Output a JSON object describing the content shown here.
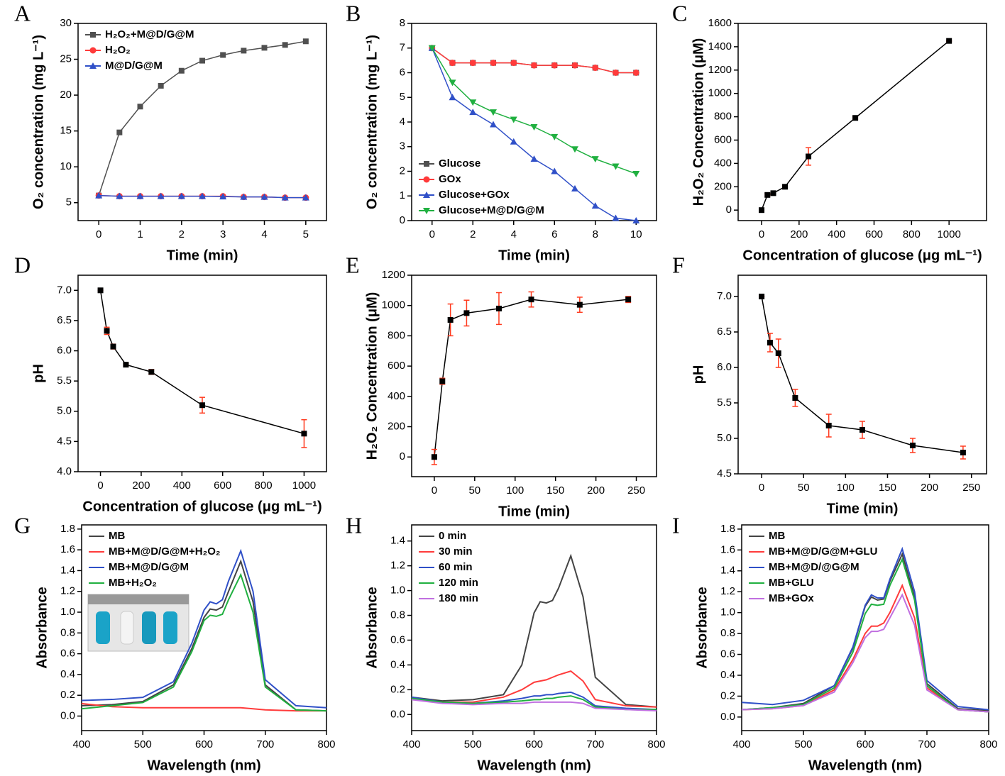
{
  "chart_data": [
    {
      "type": "line",
      "label": "A",
      "xlabel": "Time (min)",
      "ylabel": "O₂ concentration (mg L⁻¹)",
      "xlim": [
        -0.5,
        5.5
      ],
      "ylim": [
        2.5,
        30
      ],
      "xticks": [
        0,
        1,
        2,
        3,
        4,
        5
      ],
      "yticks": [
        5,
        10,
        15,
        20,
        25,
        30
      ],
      "legend": "upper-left",
      "x": [
        0,
        0.5,
        1,
        1.5,
        2,
        2.5,
        3,
        3.5,
        4,
        4.5,
        5
      ],
      "series": [
        {
          "name": "H₂O₂+M@D/G@M",
          "color": "#505050",
          "marker": "square",
          "values": [
            6.0,
            14.8,
            18.4,
            21.3,
            23.4,
            24.8,
            25.6,
            26.2,
            26.6,
            27.0,
            27.5
          ]
        },
        {
          "name": "H₂O₂",
          "color": "#ff3b3b",
          "marker": "circle",
          "values": [
            6.0,
            5.9,
            5.9,
            5.9,
            5.9,
            5.9,
            5.9,
            5.8,
            5.8,
            5.7,
            5.7
          ]
        },
        {
          "name": "M@D/G@M",
          "color": "#3050c8",
          "marker": "triangle",
          "values": [
            6.0,
            5.9,
            5.9,
            5.9,
            5.9,
            5.9,
            5.85,
            5.8,
            5.8,
            5.7,
            5.7
          ]
        }
      ]
    },
    {
      "type": "line",
      "label": "B",
      "xlabel": "Time (min)",
      "ylabel": "O₂ concentration (mg L⁻¹)",
      "xlim": [
        -1,
        11
      ],
      "ylim": [
        0,
        8
      ],
      "xticks": [
        0,
        2,
        4,
        6,
        8,
        10
      ],
      "yticks": [
        0,
        1,
        2,
        3,
        4,
        5,
        6,
        7,
        8
      ],
      "legend": "lower-left",
      "x": [
        0,
        1,
        2,
        3,
        4,
        5,
        6,
        7,
        8,
        9,
        10
      ],
      "series": [
        {
          "name": "Glucose",
          "color": "#505050",
          "marker": "square",
          "values": [
            7.0,
            6.4,
            6.4,
            6.4,
            6.4,
            6.3,
            6.3,
            6.3,
            6.2,
            6.0,
            6.0
          ]
        },
        {
          "name": "GOx",
          "color": "#ff3b3b",
          "marker": "circle",
          "values": [
            7.0,
            6.4,
            6.4,
            6.4,
            6.4,
            6.3,
            6.3,
            6.3,
            6.2,
            6.0,
            6.0
          ]
        },
        {
          "name": "Glucose+GOx",
          "color": "#3050c8",
          "marker": "triangle",
          "values": [
            7.0,
            5.0,
            4.4,
            3.9,
            3.2,
            2.5,
            2.0,
            1.3,
            0.6,
            0.1,
            0.0
          ]
        },
        {
          "name": "Glucose+M@D/G@M",
          "color": "#20b040",
          "marker": "triangle-down",
          "values": [
            7.0,
            5.6,
            4.8,
            4.4,
            4.1,
            3.8,
            3.4,
            2.9,
            2.5,
            2.2,
            1.9
          ]
        }
      ]
    },
    {
      "type": "line",
      "label": "C",
      "xlabel": "Concentration of glucose (μg mL⁻¹)",
      "ylabel": "H₂O₂ Concentration (μM)",
      "xlim": [
        -125,
        1200
      ],
      "ylim": [
        -90,
        1600
      ],
      "xticks": [
        0,
        200,
        400,
        600,
        800,
        1000
      ],
      "yticks": [
        0,
        200,
        400,
        600,
        800,
        1000,
        1200,
        1400,
        1600
      ],
      "x": [
        0,
        31.25,
        62.5,
        125,
        250,
        500,
        1000
      ],
      "series": [
        {
          "color": "#000000",
          "error_color": "#ff3b1f",
          "marker": "square",
          "values": [
            0,
            130,
            145,
            200,
            460,
            790,
            1450
          ],
          "errors": [
            0,
            10,
            10,
            10,
            75,
            10,
            5
          ]
        }
      ]
    },
    {
      "type": "line",
      "label": "D",
      "xlabel": "Concentration of glucose (μg mL⁻¹)",
      "ylabel": "pH",
      "xlim": [
        -110,
        1110
      ],
      "ylim": [
        4,
        7.25
      ],
      "xticks": [
        0,
        200,
        400,
        600,
        800,
        1000
      ],
      "yticks": [
        {
          "value": 4,
          "label": "4.0"
        },
        4.5,
        {
          "value": 5,
          "label": "5.0"
        },
        5.5,
        {
          "value": 6,
          "label": "6.0"
        },
        6.5,
        {
          "value": 7,
          "label": "7.0"
        }
      ],
      "x": [
        0,
        31.25,
        62.5,
        125,
        250,
        500,
        1000
      ],
      "series": [
        {
          "color": "#000000",
          "error_color": "#ff3b1f",
          "marker": "square",
          "values": [
            7.0,
            6.33,
            6.07,
            5.77,
            5.65,
            5.1,
            4.63
          ],
          "errors": [
            0,
            0.06,
            0.04,
            0.02,
            0.04,
            0.13,
            0.23
          ]
        }
      ]
    },
    {
      "type": "line",
      "label": "E",
      "xlabel": "Time (min)",
      "ylabel": "H₂O₂ Concentration (μM)",
      "xlim": [
        -28,
        275
      ],
      "ylim": [
        -130,
        1200
      ],
      "xticks": [
        0,
        50,
        100,
        150,
        200,
        250
      ],
      "yticks": [
        0,
        200,
        400,
        600,
        800,
        1000,
        1200
      ],
      "x": [
        0,
        10,
        20,
        40,
        80,
        120,
        180,
        240
      ],
      "series": [
        {
          "color": "#000000",
          "error_color": "#ff3b1f",
          "marker": "square",
          "values": [
            0,
            500,
            905,
            950,
            980,
            1040,
            1005,
            1040
          ],
          "errors": [
            50,
            20,
            105,
            85,
            105,
            50,
            50,
            20
          ]
        }
      ]
    },
    {
      "type": "line",
      "label": "F",
      "xlabel": "Time (min)",
      "ylabel": "pH",
      "xlim": [
        -28,
        268
      ],
      "ylim": [
        4.5,
        7.3
      ],
      "xticks": [
        0,
        50,
        100,
        150,
        200,
        250
      ],
      "yticks": [
        4.5,
        {
          "value": 5,
          "label": "5.0"
        },
        5.5,
        {
          "value": 6,
          "label": "6.0"
        },
        6.5,
        {
          "value": 7,
          "label": "7.0"
        }
      ],
      "x": [
        0,
        10,
        20,
        40,
        80,
        120,
        180,
        240
      ],
      "series": [
        {
          "color": "#000000",
          "error_color": "#ff3b1f",
          "marker": "square",
          "values": [
            7.0,
            6.35,
            6.2,
            5.57,
            5.18,
            5.12,
            4.9,
            4.8
          ],
          "errors": [
            0,
            0.13,
            0.2,
            0.12,
            0.16,
            0.12,
            0.1,
            0.09
          ]
        }
      ]
    },
    {
      "type": "line",
      "label": "G",
      "xlabel": "Wavelength (nm)",
      "ylabel": "Absorbance",
      "xlim": [
        400,
        800
      ],
      "ylim": [
        -0.14,
        1.84
      ],
      "xticks": [
        400,
        500,
        600,
        700,
        800
      ],
      "yticks": [
        {
          "value": 0,
          "label": "0.0"
        },
        0.2,
        0.4,
        0.6,
        0.8,
        {
          "value": 1,
          "label": "1.0"
        },
        1.2,
        1.4,
        1.6,
        1.8
      ],
      "legend": "upper-left",
      "x": [
        400,
        450,
        500,
        550,
        580,
        600,
        610,
        620,
        630,
        640,
        660,
        680,
        700,
        750,
        800
      ],
      "series": [
        {
          "name": "MB",
          "color": "#444444",
          "values": [
            0.1,
            0.11,
            0.14,
            0.3,
            0.65,
            0.95,
            1.03,
            1.02,
            1.05,
            1.2,
            1.49,
            1.1,
            0.3,
            0.06,
            0.05
          ]
        },
        {
          "name": "MB+M@D/G@M+H₂O₂",
          "color": "#ff3b3b",
          "values": [
            0.12,
            0.09,
            0.08,
            0.08,
            0.08,
            0.08,
            0.08,
            0.08,
            0.08,
            0.08,
            0.08,
            0.07,
            0.06,
            0.05,
            0.05
          ]
        },
        {
          "name": "MB+M@D/G@M",
          "color": "#3050c8",
          "values": [
            0.15,
            0.16,
            0.18,
            0.33,
            0.7,
            1.02,
            1.1,
            1.08,
            1.12,
            1.3,
            1.59,
            1.2,
            0.35,
            0.1,
            0.08
          ]
        },
        {
          "name": "MB+H₂O₂",
          "color": "#20b040",
          "values": [
            0.07,
            0.1,
            0.13,
            0.28,
            0.62,
            0.92,
            0.97,
            0.96,
            0.98,
            1.12,
            1.36,
            1.0,
            0.28,
            0.06,
            0.05
          ]
        }
      ]
    },
    {
      "type": "line",
      "label": "H",
      "xlabel": "Wavelength (nm)",
      "ylabel": "Absorbance",
      "xlim": [
        400,
        800
      ],
      "ylim": [
        -0.13,
        1.53
      ],
      "xticks": [
        400,
        500,
        600,
        700,
        800
      ],
      "yticks": [
        {
          "value": 0,
          "label": "0.0"
        },
        0.2,
        0.4,
        0.6,
        0.8,
        {
          "value": 1,
          "label": "1.0"
        },
        1.2,
        1.4
      ],
      "legend": "upper-left",
      "x": [
        400,
        450,
        500,
        550,
        580,
        600,
        610,
        620,
        630,
        640,
        660,
        680,
        700,
        750,
        800
      ],
      "series": [
        {
          "name": "0 min",
          "color": "#444444",
          "values": [
            0.14,
            0.11,
            0.12,
            0.16,
            0.4,
            0.82,
            0.91,
            0.9,
            0.92,
            1.02,
            1.28,
            0.95,
            0.3,
            0.08,
            0.06
          ]
        },
        {
          "name": "30 min",
          "color": "#ff3b3b",
          "values": [
            0.13,
            0.1,
            0.1,
            0.14,
            0.2,
            0.26,
            0.27,
            0.28,
            0.3,
            0.32,
            0.35,
            0.27,
            0.12,
            0.07,
            0.06
          ]
        },
        {
          "name": "60 min",
          "color": "#3050c8",
          "values": [
            0.14,
            0.1,
            0.09,
            0.11,
            0.13,
            0.15,
            0.15,
            0.16,
            0.16,
            0.17,
            0.18,
            0.14,
            0.07,
            0.05,
            0.04
          ]
        },
        {
          "name": "120 min",
          "color": "#20b040",
          "values": [
            0.13,
            0.1,
            0.09,
            0.1,
            0.11,
            0.12,
            0.12,
            0.13,
            0.13,
            0.14,
            0.15,
            0.12,
            0.06,
            0.04,
            0.04
          ]
        },
        {
          "name": "180 min",
          "color": "#c070e0",
          "values": [
            0.12,
            0.09,
            0.08,
            0.09,
            0.09,
            0.1,
            0.1,
            0.1,
            0.1,
            0.1,
            0.1,
            0.09,
            0.05,
            0.04,
            0.03
          ]
        }
      ]
    },
    {
      "type": "line",
      "label": "I",
      "xlabel": "Wavelength (nm)",
      "ylabel": "Absorbance",
      "xlim": [
        400,
        800
      ],
      "ylim": [
        -0.13,
        1.84
      ],
      "xticks": [
        400,
        500,
        600,
        700,
        800
      ],
      "yticks": [
        {
          "value": 0,
          "label": "0.0"
        },
        0.2,
        0.4,
        0.6,
        0.8,
        {
          "value": 1,
          "label": "1.0"
        },
        1.2,
        1.4,
        1.6,
        1.8
      ],
      "legend": "upper-left",
      "x": [
        400,
        450,
        500,
        550,
        580,
        600,
        610,
        620,
        630,
        640,
        660,
        680,
        700,
        750,
        800
      ],
      "series": [
        {
          "name": "MB",
          "color": "#444444",
          "values": [
            0.07,
            0.09,
            0.13,
            0.3,
            0.66,
            1.06,
            1.15,
            1.12,
            1.13,
            1.3,
            1.56,
            1.15,
            0.32,
            0.08,
            0.06
          ]
        },
        {
          "name": "MB+M@D/G@M+GLU",
          "color": "#ff3b3b",
          "values": [
            0.07,
            0.08,
            0.11,
            0.26,
            0.55,
            0.8,
            0.87,
            0.87,
            0.9,
            1.0,
            1.26,
            0.95,
            0.28,
            0.07,
            0.05
          ]
        },
        {
          "name": "MB+M@D/@G@M",
          "color": "#3050c8",
          "values": [
            0.14,
            0.12,
            0.16,
            0.3,
            0.67,
            1.07,
            1.17,
            1.14,
            1.14,
            1.32,
            1.61,
            1.2,
            0.35,
            0.1,
            0.07
          ]
        },
        {
          "name": "MB+GLU",
          "color": "#20b040",
          "values": [
            0.07,
            0.09,
            0.12,
            0.28,
            0.62,
            0.99,
            1.08,
            1.07,
            1.08,
            1.26,
            1.51,
            1.12,
            0.3,
            0.07,
            0.05
          ]
        },
        {
          "name": "MB+GOx",
          "color": "#c070e0",
          "values": [
            0.07,
            0.08,
            0.11,
            0.24,
            0.52,
            0.76,
            0.82,
            0.82,
            0.84,
            0.95,
            1.17,
            0.88,
            0.26,
            0.07,
            0.05
          ]
        }
      ]
    }
  ]
}
